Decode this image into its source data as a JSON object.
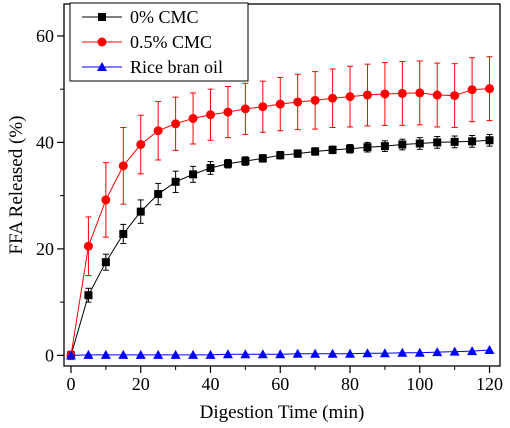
{
  "chart_data": {
    "type": "line",
    "xlabel": "Digestion Time (min)",
    "ylabel": "FFA Released (%)",
    "xlim": [
      -2,
      123
    ],
    "ylim": [
      -2,
      66
    ],
    "xticks": [
      0,
      20,
      40,
      60,
      80,
      100,
      120
    ],
    "yticks": [
      0,
      20,
      40,
      60
    ],
    "legend_position": "top-left",
    "x": [
      0,
      5,
      10,
      15,
      20,
      25,
      30,
      35,
      40,
      45,
      50,
      55,
      60,
      65,
      70,
      75,
      80,
      85,
      90,
      95,
      100,
      105,
      110,
      115,
      120
    ],
    "series": [
      {
        "name": "0% CMC",
        "color": "#000000",
        "marker": "square",
        "values": [
          0,
          11.3,
          17.5,
          22.8,
          27.0,
          30.3,
          32.6,
          34.0,
          35.2,
          36.0,
          36.5,
          37.0,
          37.6,
          37.9,
          38.3,
          38.6,
          38.8,
          39.1,
          39.3,
          39.6,
          39.8,
          40.0,
          40.1,
          40.2,
          40.4
        ],
        "errors": [
          0.5,
          1.3,
          1.5,
          1.8,
          2.2,
          2.0,
          2.0,
          1.5,
          1.2,
          0.8,
          0.8,
          0.7,
          0.7,
          0.7,
          0.7,
          0.7,
          0.8,
          0.9,
          1.0,
          1.0,
          1.1,
          1.1,
          1.1,
          1.1,
          1.1
        ]
      },
      {
        "name": "0.5% CMC",
        "color": "#ff0000",
        "marker": "circle",
        "values": [
          0,
          20.5,
          29.2,
          35.6,
          39.6,
          42.2,
          43.5,
          44.5,
          45.2,
          45.7,
          46.3,
          46.7,
          47.2,
          47.6,
          47.9,
          48.3,
          48.6,
          48.9,
          49.1,
          49.2,
          49.3,
          48.9,
          48.8,
          49.9,
          50.1
        ],
        "errors": [
          0.8,
          5.5,
          7.0,
          7.2,
          5.5,
          5.5,
          5.0,
          4.8,
          4.8,
          4.8,
          4.8,
          4.8,
          5.0,
          5.2,
          5.4,
          5.5,
          5.7,
          5.8,
          5.9,
          6.0,
          6.0,
          6.0,
          6.0,
          6.0,
          6.0
        ]
      },
      {
        "name": "Rice bran oil",
        "color": "#0000ff",
        "marker": "triangle",
        "values": [
          0,
          0.1,
          0.1,
          0.1,
          0.1,
          0.1,
          0.1,
          0.1,
          0.1,
          0.2,
          0.2,
          0.2,
          0.2,
          0.3,
          0.3,
          0.3,
          0.3,
          0.4,
          0.4,
          0.5,
          0.5,
          0.6,
          0.7,
          0.8,
          1.0
        ],
        "errors": [
          0,
          0,
          0,
          0,
          0,
          0,
          0,
          0,
          0,
          0,
          0,
          0,
          0,
          0,
          0,
          0,
          0,
          0,
          0,
          0,
          0,
          0,
          0,
          0,
          0
        ]
      }
    ]
  }
}
